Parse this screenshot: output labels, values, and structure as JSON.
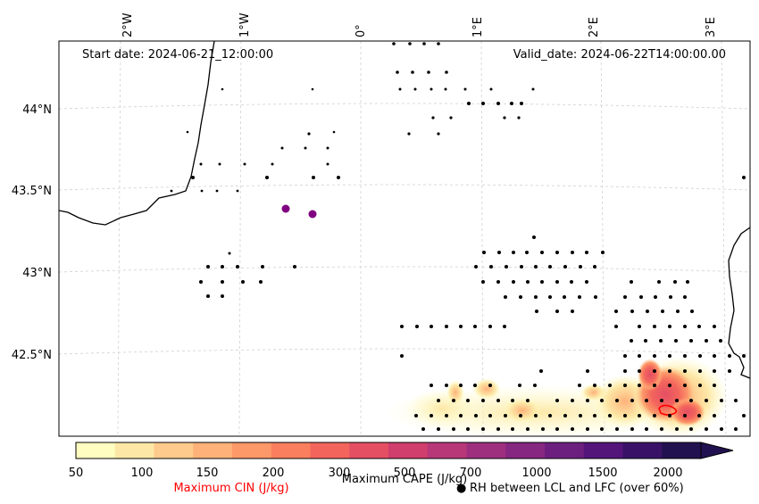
{
  "header": {
    "start_date": "Start date: 2024-06-21_12:00:00",
    "valid_date": "Valid_date: 2024-06-22T14:00:00.00"
  },
  "map": {
    "lon_ticks": [
      "2°W",
      "1°W",
      "0°",
      "1°E",
      "2°E",
      "3°E"
    ],
    "lat_ticks": [
      "44°N",
      "43.5°N",
      "43°N",
      "42.5°N"
    ],
    "gridlines": true,
    "purple_markers": 2
  },
  "colorbar": {
    "title": "Maximum CAPE (J/kg)",
    "tick_labels": [
      "50",
      "100",
      "150",
      "200",
      "300",
      "500",
      "700",
      "1000",
      "1500",
      "2000"
    ],
    "colors": [
      "#fffdbf",
      "#fde7a6",
      "#fecb8c",
      "#feb27a",
      "#fd9869",
      "#fa7f5e",
      "#f3655c",
      "#e44f64",
      "#cf3e6d",
      "#b73779",
      "#9e2f7f",
      "#862781",
      "#6d1f80",
      "#53157a",
      "#391267",
      "#221150"
    ],
    "extend": "max"
  },
  "legend": {
    "cin_label": "Maximum CIN (J/kg)",
    "cin_color": "#ff0000",
    "rh_label": "RH between LCL and LFC (over 60%)",
    "rh_marker": "●"
  }
}
